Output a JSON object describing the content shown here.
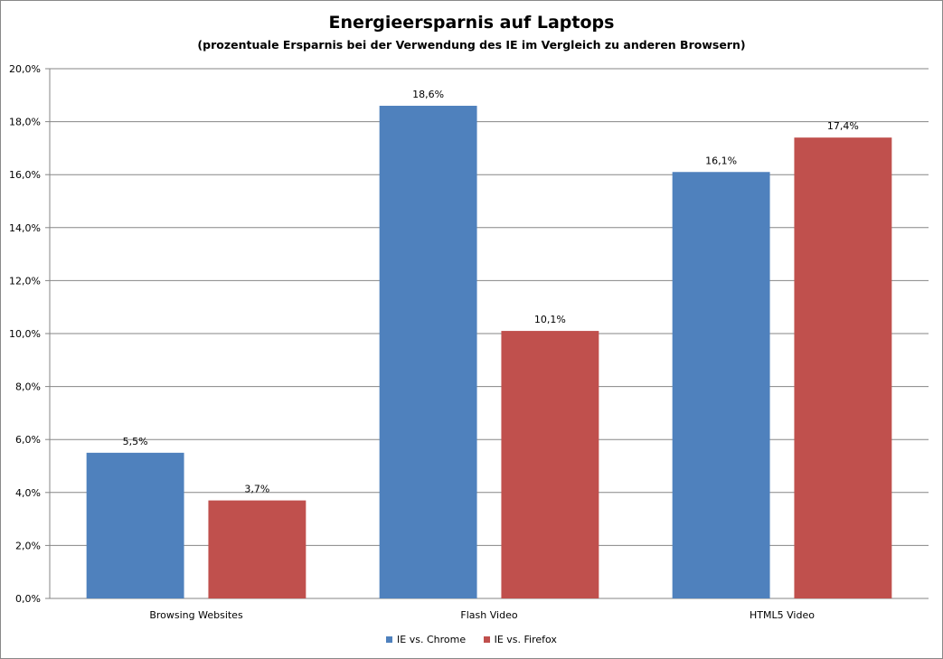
{
  "chart_data": {
    "type": "bar",
    "title": "Energieersparnis auf Laptops",
    "subtitle": "(prozentuale Ersparnis bei der Verwendung des IE im Vergleich zu anderen Browsern)",
    "categories": [
      "Browsing Websites",
      "Flash Video",
      "HTML5 Video"
    ],
    "series": [
      {
        "name": "IE vs. Chrome",
        "color": "#4F81BD",
        "values": [
          5.5,
          18.6,
          16.1
        ],
        "labels": [
          "5,5%",
          "18,6%",
          "16,1%"
        ]
      },
      {
        "name": "IE vs. Firefox",
        "color": "#C0504D",
        "values": [
          3.7,
          10.1,
          17.4
        ],
        "labels": [
          "3,7%",
          "10,1%",
          "17,4%"
        ]
      }
    ],
    "ylim": [
      0,
      20
    ],
    "yticks": [
      0,
      2,
      4,
      6,
      8,
      10,
      12,
      14,
      16,
      18,
      20
    ],
    "ytick_labels": [
      "0,0%",
      "2,0%",
      "4,0%",
      "6,0%",
      "8,0%",
      "10,0%",
      "12,0%",
      "14,0%",
      "16,0%",
      "18,0%",
      "20,0%"
    ],
    "grid": true,
    "legend_position": "bottom"
  }
}
